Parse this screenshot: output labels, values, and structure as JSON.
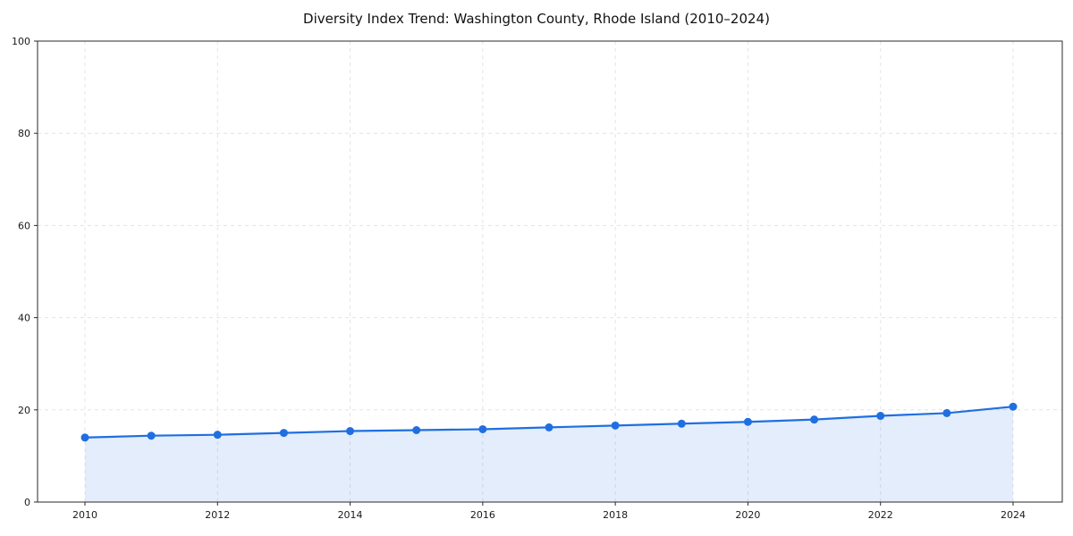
{
  "title": "Diversity Index Trend: Washington County, Rhode Island (2010–2024)",
  "chart_data": {
    "type": "line",
    "title": "Diversity Index Trend: Washington County, Rhode Island (2010–2024)",
    "x": [
      2010,
      2011,
      2012,
      2013,
      2014,
      2015,
      2016,
      2017,
      2018,
      2019,
      2020,
      2021,
      2022,
      2023,
      2024
    ],
    "series": [
      {
        "name": "Diversity Index",
        "values": [
          14.0,
          14.4,
          14.6,
          15.0,
          15.4,
          15.6,
          15.8,
          16.2,
          16.6,
          17.0,
          17.4,
          17.9,
          18.7,
          19.3,
          20.7
        ]
      }
    ],
    "xlabel": "",
    "ylabel": "",
    "ylim": [
      0,
      100
    ],
    "yticks": [
      0,
      20,
      40,
      60,
      80,
      100
    ],
    "xticks": [
      2010,
      2012,
      2014,
      2016,
      2018,
      2020,
      2022,
      2024
    ],
    "grid": true,
    "grid_style": "dashed",
    "legend_position": "none",
    "colors": {
      "line": "#1f6fe0",
      "marker": "#1f6fe0",
      "fill": "#1f6fe0",
      "fill_opacity": "0.12",
      "grid": "#e4e4e4",
      "frame": "#2a2a2a",
      "text": "#1a1a1a"
    }
  }
}
